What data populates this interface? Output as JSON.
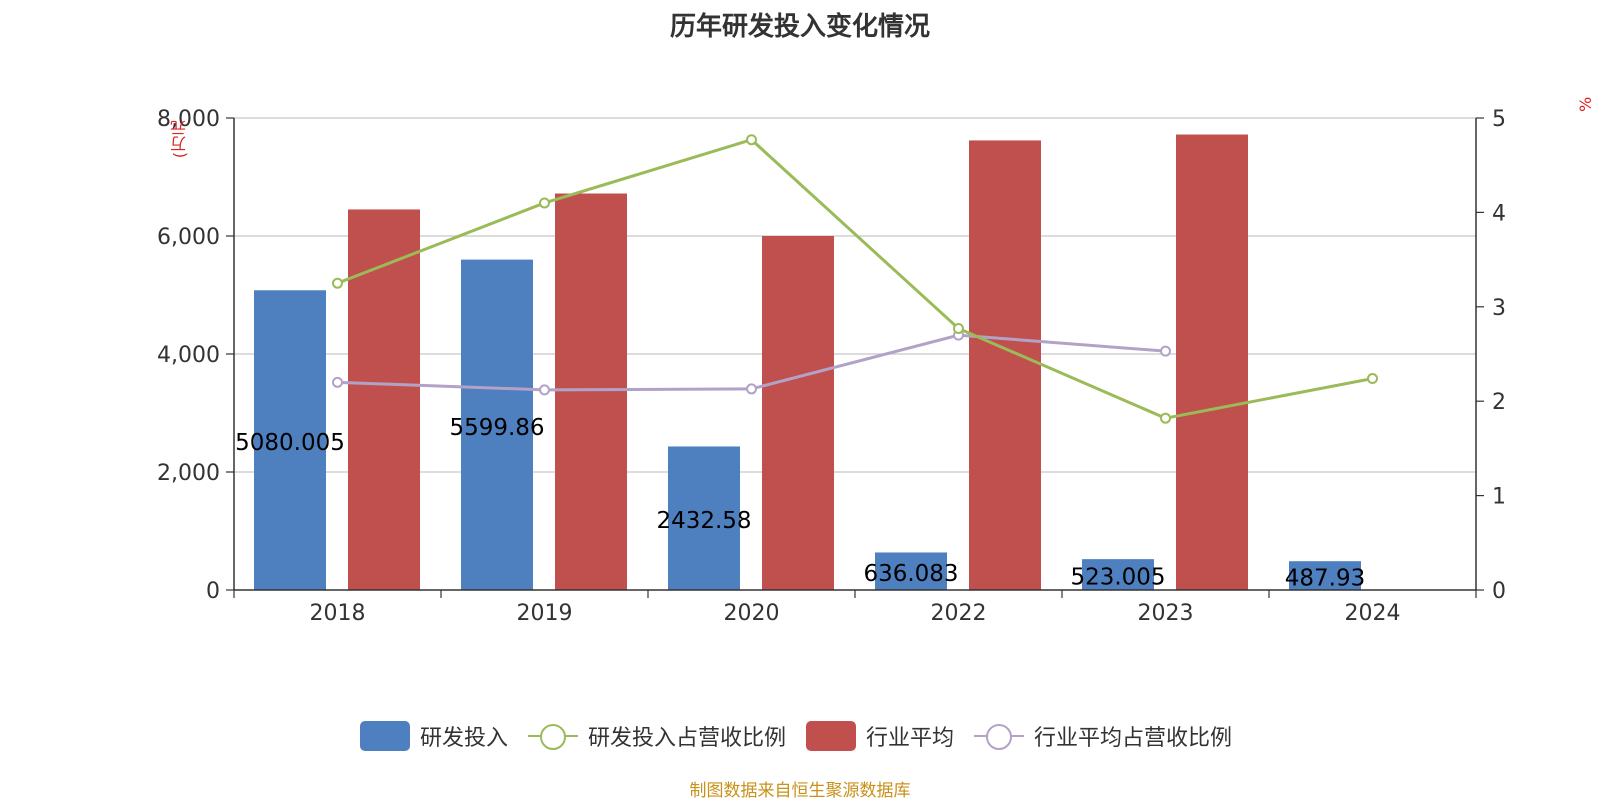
{
  "title": "历年研发投入变化情况",
  "source_note": "制图数据来自恒生聚源数据库",
  "colors": {
    "rd_bar": "#4e7fbf",
    "industry_bar": "#c0504d",
    "rd_ratio_line": "#9bbb59",
    "industry_ratio_line": "#b3a2c7",
    "axis_unit": "#e02020",
    "grid": "#c8c8c8"
  },
  "chart_data": {
    "type": "bar",
    "title": "历年研发投入变化情况",
    "categories": [
      "2018",
      "2019",
      "2020",
      "2022",
      "2023",
      "2024"
    ],
    "y_left": {
      "label": "(万元",
      "ylim": [
        0,
        8000
      ],
      "ticks": [
        0,
        2000,
        4000,
        6000,
        8000
      ],
      "tick_labels": [
        "0",
        "2,000",
        "4,000",
        "6,000",
        "8,000"
      ]
    },
    "y_right": {
      "label": "%",
      "ylim": [
        0,
        5
      ],
      "ticks": [
        0,
        1,
        2,
        3,
        4,
        5
      ],
      "tick_labels": [
        "0",
        "1",
        "2",
        "3",
        "4",
        "5"
      ]
    },
    "grid": true,
    "legend_position": "bottom",
    "series": [
      {
        "name": "研发投入",
        "kind": "bar",
        "axis": "left",
        "values": [
          5080.005,
          5599.86,
          2432.58,
          636.083,
          523.005,
          487.93
        ],
        "data_labels": [
          "5080.005",
          "5599.86",
          "2432.58",
          "636.083",
          "523.005",
          "487.93"
        ]
      },
      {
        "name": "研发投入占营收比例",
        "kind": "line",
        "axis": "right",
        "values": [
          3.25,
          4.1,
          4.77,
          2.77,
          1.82,
          2.24
        ]
      },
      {
        "name": "行业平均",
        "kind": "bar",
        "axis": "left",
        "values": [
          6450,
          6720,
          6000,
          7620,
          7720,
          null
        ]
      },
      {
        "name": "行业平均占营收比例",
        "kind": "line",
        "axis": "right",
        "values": [
          2.2,
          2.12,
          2.13,
          2.7,
          2.53,
          null
        ]
      }
    ]
  }
}
